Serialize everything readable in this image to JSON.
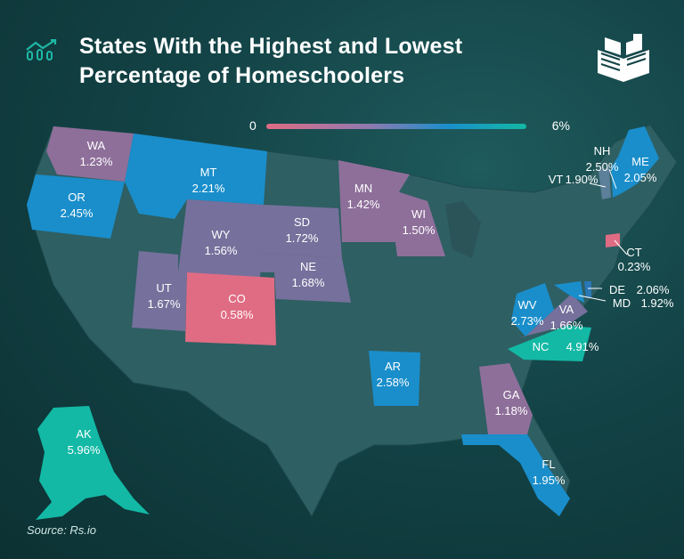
{
  "title_line1": "States With the Highest and Lowest",
  "title_line2": "Percentage of Homeschoolers",
  "legend": {
    "min_label": "0",
    "max_label": "6%"
  },
  "source": "Source: Rs.io",
  "colors": {
    "low": "#e06c83",
    "mid": "#8e7ab0",
    "high": "#1a8ecb",
    "top": "#13b9a5",
    "unlabeled": "#2e5f63"
  },
  "states": [
    {
      "code": "WA",
      "value": "1.23%"
    },
    {
      "code": "OR",
      "value": "2.45%"
    },
    {
      "code": "MT",
      "value": "2.21%"
    },
    {
      "code": "WY",
      "value": "1.56%"
    },
    {
      "code": "SD",
      "value": "1.72%"
    },
    {
      "code": "MN",
      "value": "1.42%"
    },
    {
      "code": "WI",
      "value": "1.50%"
    },
    {
      "code": "NE",
      "value": "1.68%"
    },
    {
      "code": "UT",
      "value": "1.67%"
    },
    {
      "code": "CO",
      "value": "0.58%"
    },
    {
      "code": "AR",
      "value": "2.58%"
    },
    {
      "code": "GA",
      "value": "1.18%"
    },
    {
      "code": "FL",
      "value": "1.95%"
    },
    {
      "code": "NC",
      "value": "4.91%"
    },
    {
      "code": "WV",
      "value": "2.73%"
    },
    {
      "code": "VA",
      "value": "1.66%"
    },
    {
      "code": "NH",
      "value": "2.50%"
    },
    {
      "code": "ME",
      "value": "2.05%"
    },
    {
      "code": "VT",
      "value": "1.90%"
    },
    {
      "code": "CT",
      "value": "0.23%"
    },
    {
      "code": "DE",
      "value": "2.06%"
    },
    {
      "code": "MD",
      "value": "1.92%"
    },
    {
      "code": "AK",
      "value": "5.96%"
    }
  ]
}
